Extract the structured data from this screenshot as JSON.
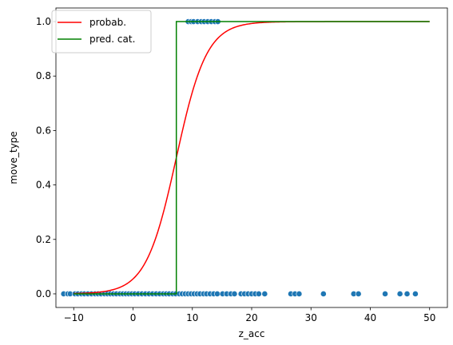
{
  "chart_data": {
    "type": "scatter",
    "xlabel": "z_acc",
    "ylabel": "move_type",
    "xlim": [
      -13,
      53
    ],
    "ylim": [
      -0.05,
      1.05
    ],
    "xticks": [
      -10,
      0,
      10,
      20,
      30,
      40,
      50
    ],
    "yticks": [
      0.0,
      0.2,
      0.4,
      0.6,
      0.8,
      1.0
    ],
    "xtick_labels": [
      "−10",
      "0",
      "10",
      "20",
      "30",
      "40",
      "50"
    ],
    "ytick_labels": [
      "0.0",
      "0.2",
      "0.4",
      "0.6",
      "0.8",
      "1.0"
    ],
    "grid": false,
    "legend_position": "top-left",
    "legend": [
      {
        "label": "probab.",
        "color": "#ff0000"
      },
      {
        "label": "pred. cat.",
        "color": "#008000"
      }
    ],
    "series": [
      {
        "name": "probab.",
        "kind": "logistic-curve",
        "color": "#ff0000",
        "x_range": [
          -10,
          50
        ],
        "midpoint": 7.3,
        "slope": 0.39
      },
      {
        "name": "pred. cat.",
        "kind": "step",
        "color": "#008000",
        "x_range": [
          -10,
          50
        ],
        "threshold": 7.3,
        "y_before": 0,
        "y_after": 1
      },
      {
        "kind": "scatter",
        "color": "#1f77b4",
        "points_y0_x": [
          -11.7,
          -11.0,
          -10.6,
          -9.8,
          -9.3,
          -8.7,
          -8.2,
          -7.6,
          -7.0,
          -6.4,
          -5.9,
          -5.4,
          -4.8,
          -4.3,
          -3.8,
          -3.3,
          -2.8,
          -2.2,
          -1.7,
          -1.2,
          -0.7,
          -0.2,
          0.3,
          0.9,
          1.5,
          2.1,
          2.7,
          3.3,
          3.9,
          4.5,
          5.1,
          5.6,
          6.1,
          6.7,
          7.2,
          7.8,
          8.3,
          8.8,
          9.3,
          9.8,
          10.3,
          10.8,
          11.3,
          11.9,
          12.4,
          13.0,
          13.6,
          14.2,
          15.1,
          15.8,
          16.5,
          17.1,
          18.2,
          18.8,
          19.4,
          20.0,
          20.6,
          21.2,
          22.2,
          26.6,
          27.3,
          28.0,
          32.1,
          37.2,
          38.0,
          42.5,
          45.0,
          46.2,
          47.6
        ],
        "points_y1_x": [
          9.3,
          9.8,
          10.2,
          10.9,
          11.5,
          12.0,
          12.6,
          13.2,
          13.8,
          14.3
        ]
      }
    ]
  }
}
